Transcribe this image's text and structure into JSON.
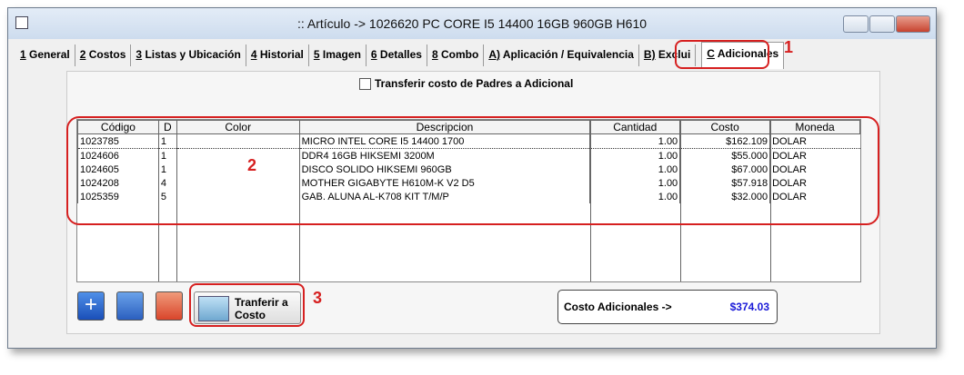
{
  "window": {
    "title": ":: Artículo -> 1026620 PC CORE I5 14400 16GB 960GB H610"
  },
  "tabs": [
    "1 General",
    "2 Costos",
    "3 Listas y Ubicación",
    "4 Historial",
    "5 Imagen",
    "6 Detalles",
    "8 Combo",
    "A) Aplicación / Equivalencia",
    "B) Exclui",
    "C Adicionales"
  ],
  "checkbox": "Transferir costo de Padres a Adicional",
  "table": {
    "columns": [
      "Código",
      "D",
      "Color",
      "Descripcion",
      "Cantidad",
      "Costo",
      "Moneda"
    ],
    "rows": [
      [
        "1023785",
        "1",
        "",
        "MICRO INTEL CORE I5 14400 1700",
        "1.00",
        "$162.109",
        "DOLAR"
      ],
      [
        "1024606",
        "1",
        "",
        "DDR4 16GB HIKSEMI 3200M",
        "1.00",
        "$55.000",
        "DOLAR"
      ],
      [
        "1024605",
        "1",
        "",
        "DISCO SOLIDO HIKSEMI 960GB",
        "1.00",
        "$67.000",
        "DOLAR"
      ],
      [
        "1024208",
        "4",
        "",
        "MOTHER GIGABYTE H610M-K V2 D5",
        "1.00",
        "$57.918",
        "DOLAR"
      ],
      [
        "1025359",
        "5",
        "",
        "GAB. ALUNA AL-K708 KIT T/M/P",
        "1.00",
        "$32.000",
        "DOLAR"
      ]
    ]
  },
  "transfer_button": "Tranferir a Costo",
  "summary": {
    "label": "Costo Adicionales ->",
    "value": "$374.03"
  },
  "annotations": [
    "1",
    "2",
    "3"
  ]
}
